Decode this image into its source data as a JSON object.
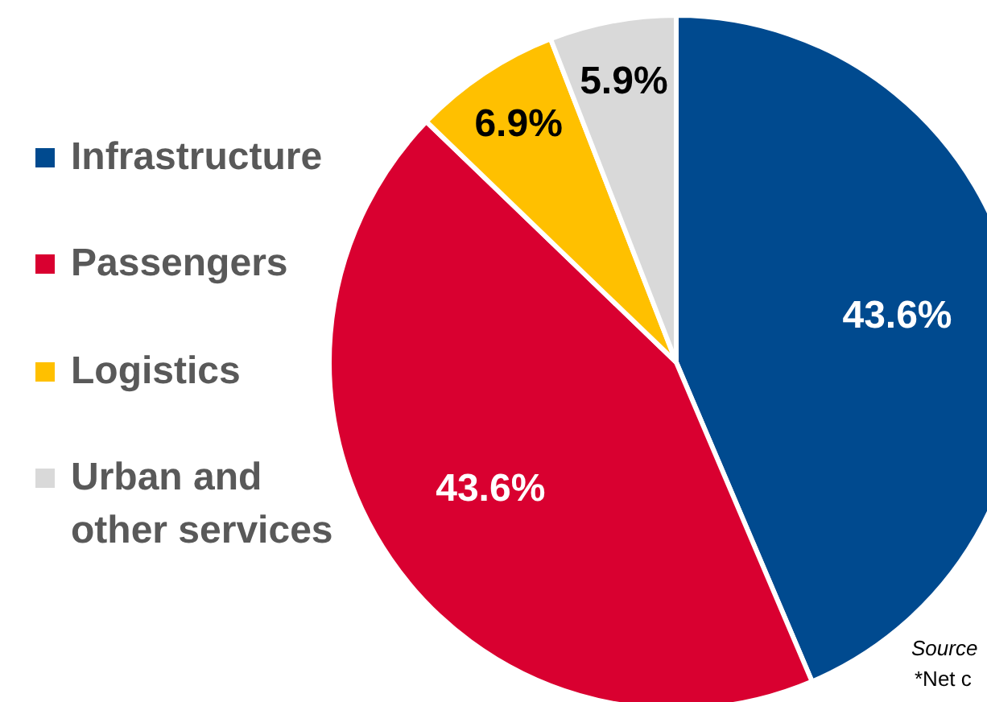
{
  "chart_data": {
    "type": "pie",
    "categories": [
      "Infrastructure",
      "Passengers",
      "Logistics",
      "Urban and other services"
    ],
    "values": [
      43.6,
      43.6,
      6.9,
      5.9
    ],
    "colors": [
      "#004a8f",
      "#d90030",
      "#ffc000",
      "#d9d9d9"
    ],
    "value_labels": [
      "43.6%",
      "43.6%",
      "6.9%",
      "5.9%"
    ],
    "legend": "left",
    "annotations": [
      "Source",
      "*Net c"
    ]
  }
}
